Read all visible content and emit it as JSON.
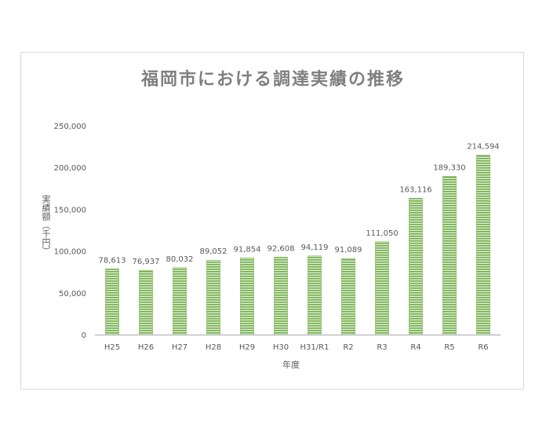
{
  "chart_data": {
    "type": "bar",
    "title": "福岡市における調達実績の推移",
    "xlabel": "年度",
    "ylabel": "実績額（千円）",
    "categories": [
      "H25",
      "H26",
      "H27",
      "H28",
      "H29",
      "H30",
      "H31/R1",
      "R2",
      "R3",
      "R4",
      "R5",
      "R6"
    ],
    "values": [
      78613,
      76937,
      80032,
      89052,
      91854,
      92608,
      94119,
      91089,
      111050,
      163116,
      189330,
      214594
    ],
    "labels": [
      "78,613",
      "76,937",
      "80,032",
      "89,052",
      "91,854",
      "92,608",
      "94,119",
      "91,089",
      "111,050",
      "163,116",
      "189,330",
      "214,594"
    ],
    "ylim": [
      0,
      250000
    ],
    "yticks": [
      0,
      50000,
      100000,
      150000,
      200000,
      250000
    ],
    "ytick_labels": [
      "0",
      "50,000",
      "100,000",
      "150,000",
      "200,000",
      "250,000"
    ],
    "grid": false,
    "bar_color": "#70ad47"
  }
}
